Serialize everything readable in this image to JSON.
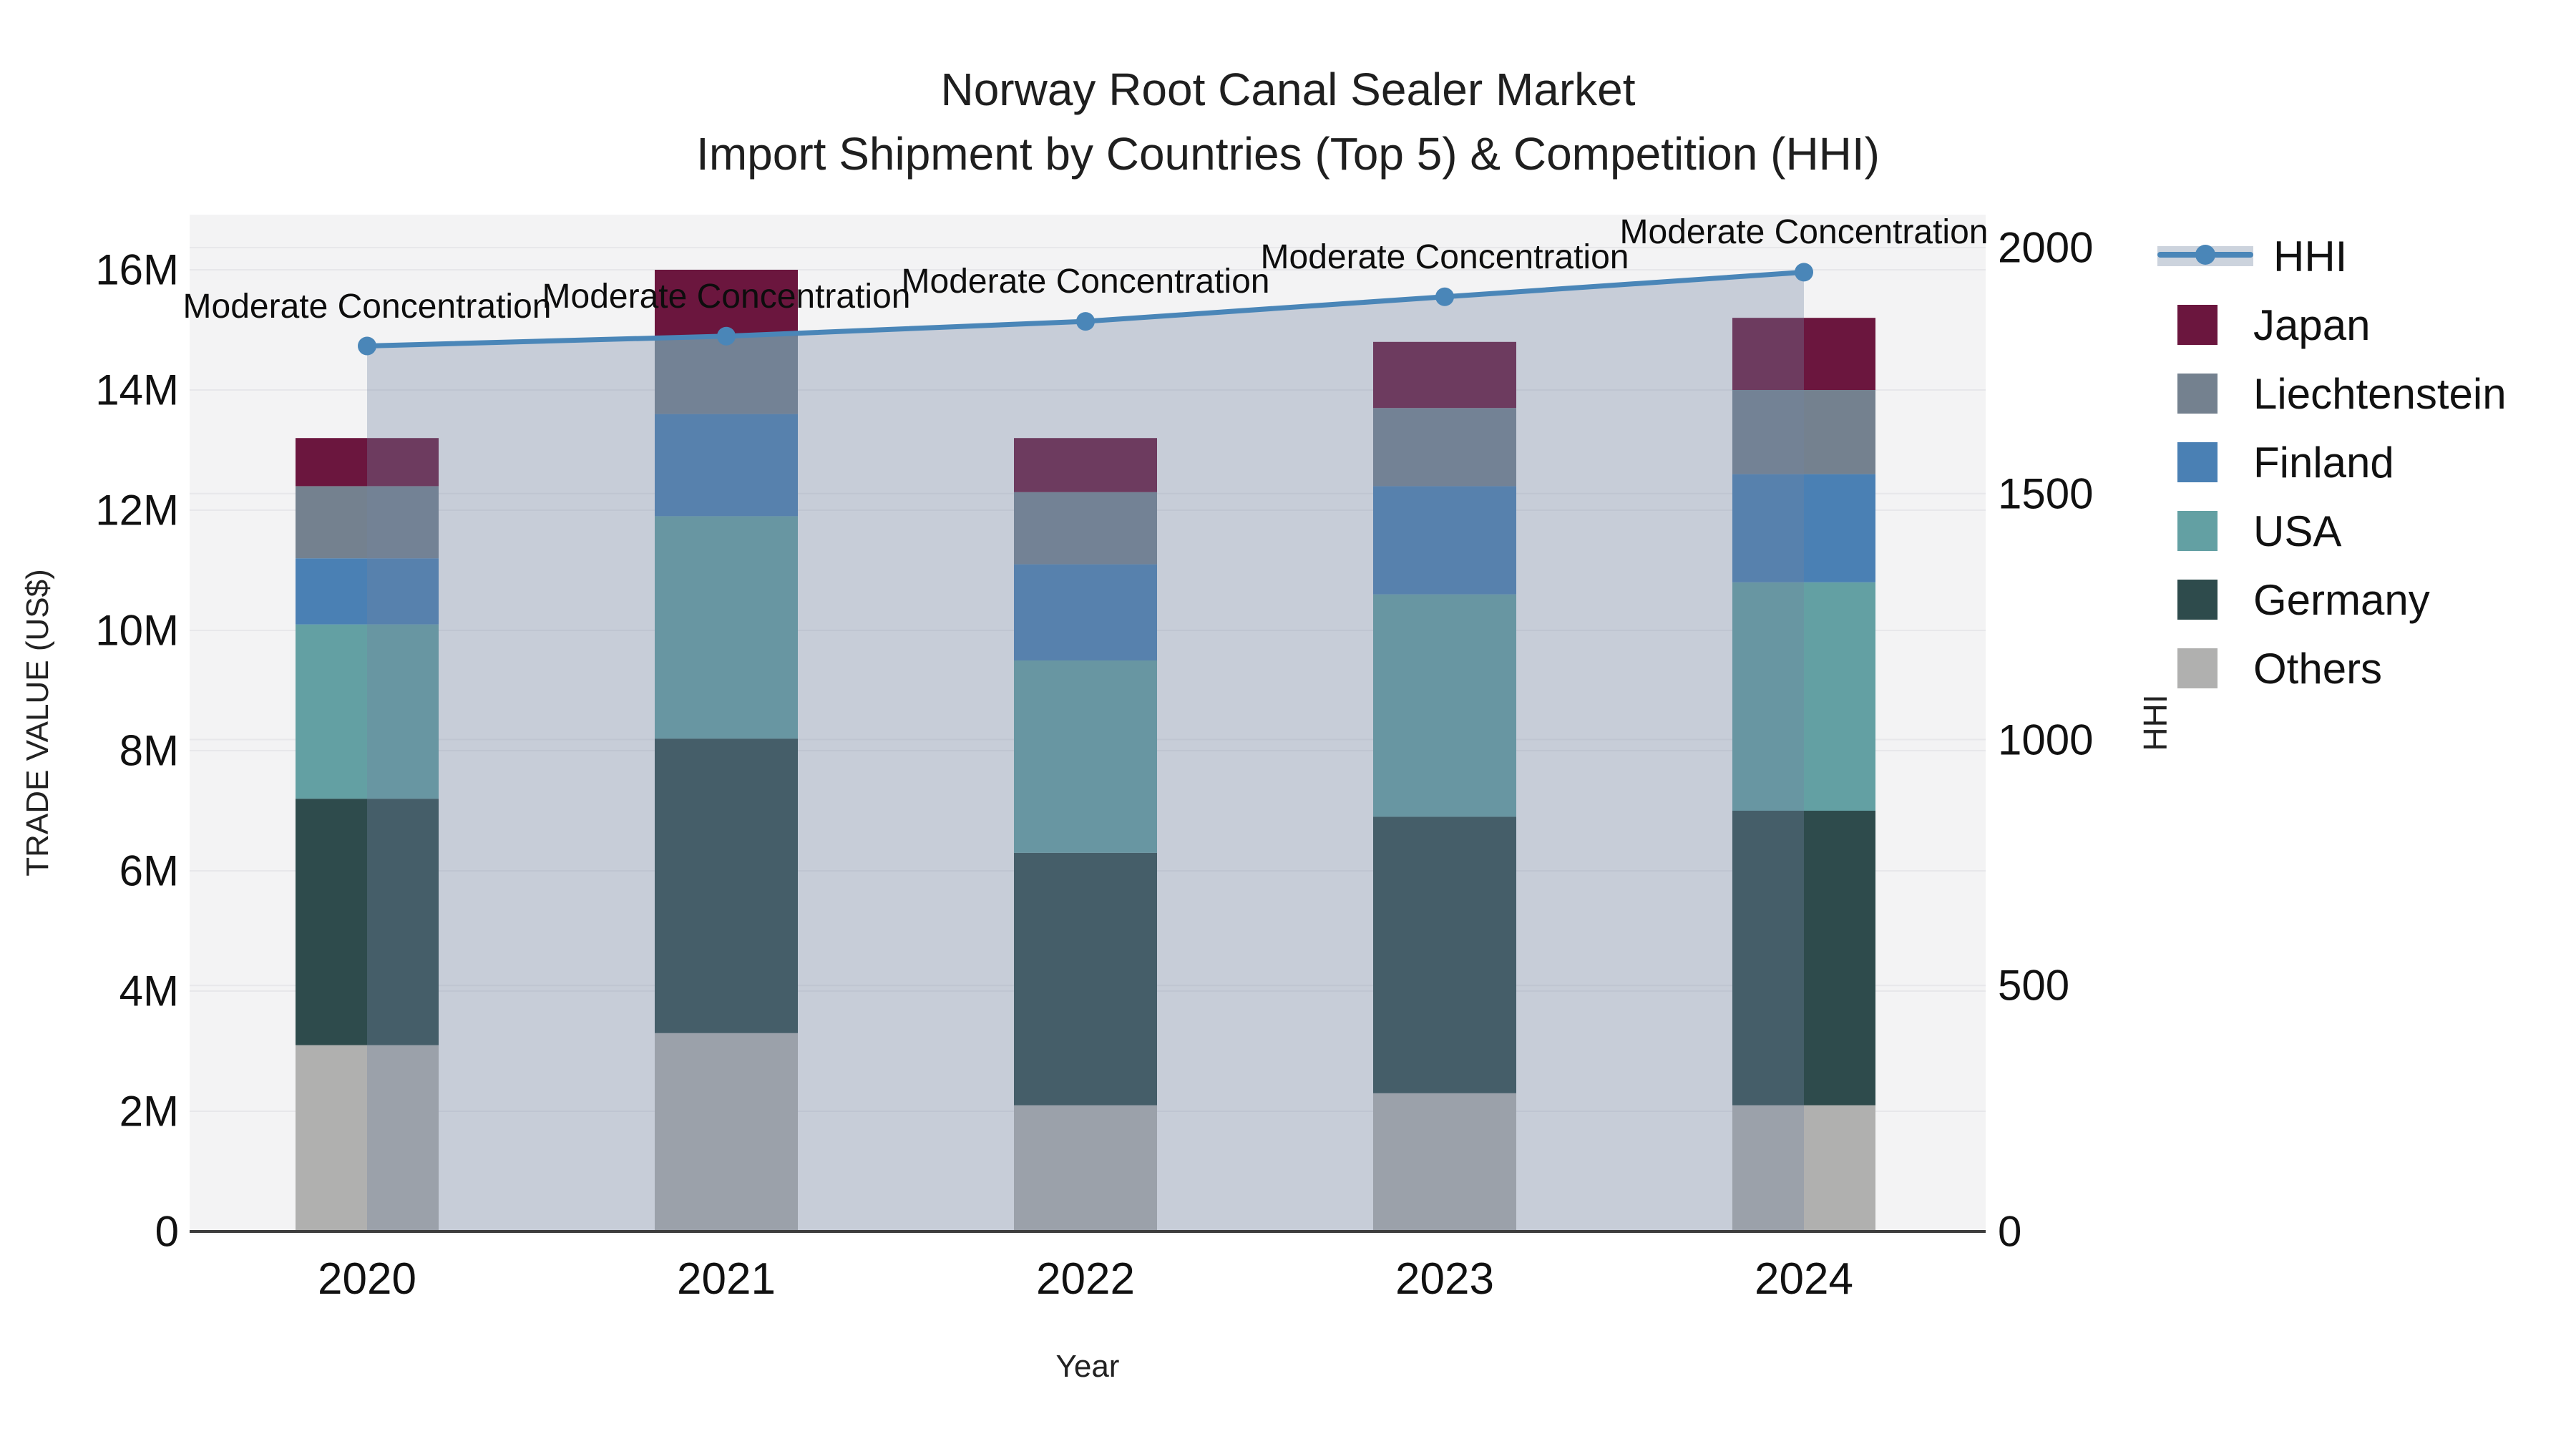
{
  "title": {
    "line1": "Norway Root Canal Sealer Market",
    "line2": "Import Shipment by Countries (Top 5) & Competition (HHI)"
  },
  "chart_data": {
    "type": "stacked-bar+line",
    "x_categories": [
      "2020",
      "2021",
      "2022",
      "2023",
      "2024"
    ],
    "stack_order_bottom_to_top": [
      "Others",
      "Germany",
      "USA",
      "Finland",
      "Liechtenstein",
      "Japan"
    ],
    "series": [
      {
        "name": "Others",
        "color": "#b0b0af",
        "values_musd": [
          3.1,
          3.3,
          2.1,
          2.3,
          2.1
        ]
      },
      {
        "name": "Germany",
        "color": "#2e4b4c",
        "values_musd": [
          4.1,
          4.9,
          4.2,
          4.6,
          4.9
        ]
      },
      {
        "name": "USA",
        "color": "#63a0a3",
        "values_musd": [
          2.9,
          3.7,
          3.2,
          3.7,
          3.8
        ]
      },
      {
        "name": "Finland",
        "color": "#4a80b4",
        "values_musd": [
          1.1,
          1.7,
          1.6,
          1.8,
          1.8
        ]
      },
      {
        "name": "Liechtenstein",
        "color": "#74818f",
        "values_musd": [
          1.2,
          1.3,
          1.2,
          1.3,
          1.4
        ]
      },
      {
        "name": "Japan",
        "color": "#6b163e",
        "values_musd": [
          0.8,
          1.1,
          0.9,
          1.1,
          1.2
        ]
      }
    ],
    "stack_totals_musd": [
      13.2,
      16.0,
      13.2,
      14.8,
      15.2
    ],
    "line_series": {
      "name": "HHI",
      "axis": "right",
      "color": "#4a86b8",
      "area_fill_color": "rgba(113,131,161,0.34)",
      "values": [
        1800,
        1820,
        1850,
        1900,
        1950
      ]
    },
    "annotations": [
      {
        "x": "2020",
        "text": "Moderate Concentration"
      },
      {
        "x": "2021",
        "text": "Moderate Concentration"
      },
      {
        "x": "2022",
        "text": "Moderate Concentration"
      },
      {
        "x": "2023",
        "text": "Moderate Concentration"
      },
      {
        "x": "2024",
        "text": "Moderate Concentration"
      }
    ],
    "left_axis": {
      "title": "TRADE VALUE (US$)",
      "ticks": [
        {
          "v": 0,
          "label": "0"
        },
        {
          "v": 2,
          "label": "2M"
        },
        {
          "v": 4,
          "label": "4M"
        },
        {
          "v": 6,
          "label": "6M"
        },
        {
          "v": 8,
          "label": "8M"
        },
        {
          "v": 10,
          "label": "10M"
        },
        {
          "v": 12,
          "label": "12M"
        },
        {
          "v": 14,
          "label": "14M"
        },
        {
          "v": 16,
          "label": "16M"
        }
      ],
      "range_musd": [
        0,
        16.9
      ]
    },
    "right_axis": {
      "title": "HHI",
      "ticks": [
        {
          "v": 0,
          "label": "0"
        },
        {
          "v": 500,
          "label": "500"
        },
        {
          "v": 1000,
          "label": "1000"
        },
        {
          "v": 1500,
          "label": "1500"
        },
        {
          "v": 2000,
          "label": "2000"
        }
      ],
      "range": [
        0,
        2067
      ]
    },
    "x_axis": {
      "title": "Year"
    },
    "legend": [
      {
        "name": "HHI",
        "type": "line"
      },
      {
        "name": "Japan",
        "type": "swatch",
        "color": "#6b163e"
      },
      {
        "name": "Liechtenstein",
        "type": "swatch",
        "color": "#74818f"
      },
      {
        "name": "Finland",
        "type": "swatch",
        "color": "#4a80b4"
      },
      {
        "name": "USA",
        "type": "swatch",
        "color": "#63a0a3"
      },
      {
        "name": "Germany",
        "type": "swatch",
        "color": "#2e4b4c"
      },
      {
        "name": "Others",
        "type": "swatch",
        "color": "#b0b0af"
      }
    ],
    "layout_hints": {
      "plot_bg": "#f3f3f4",
      "gridline_color": "#e7e7ea",
      "axis_line_color": "#3d3d3d",
      "legend_position": "right"
    }
  }
}
